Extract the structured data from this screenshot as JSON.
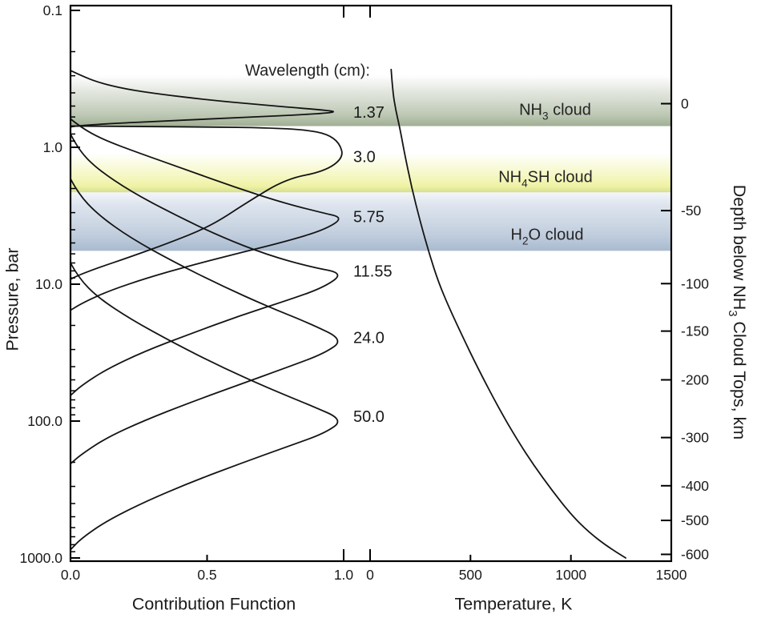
{
  "chart_data": {
    "type": "line",
    "annotation": "Wavelength (cm):",
    "y_axis_left": {
      "label": "Pressure, bar",
      "scale": "log",
      "range_bar": [
        0.1,
        1000
      ],
      "ticks": [
        {
          "p": 0.1,
          "label": "0.1"
        },
        {
          "p": 1,
          "label": "1.0"
        },
        {
          "p": 10,
          "label": "10.0"
        },
        {
          "p": 100,
          "label": "100.0"
        },
        {
          "p": 1000,
          "label": "1000.0"
        }
      ]
    },
    "y_axis_right": {
      "label_pre": "Depth below NH",
      "label_sub": "3",
      "label_post": " Cloud Tops, km",
      "ticks": [
        {
          "km": "0",
          "p": 0.48
        },
        {
          "km": "-50",
          "p": 2.9
        },
        {
          "km": "-100",
          "p": 9.9
        },
        {
          "km": "-150",
          "p": 22
        },
        {
          "km": "-200",
          "p": 50
        },
        {
          "km": "-300",
          "p": 132
        },
        {
          "km": "-400",
          "p": 297
        },
        {
          "km": "-500",
          "p": 532
        },
        {
          "km": "-600",
          "p": 941
        }
      ]
    },
    "x_axes": [
      {
        "id": "contribution",
        "label": "Contribution Function",
        "range": [
          0,
          1
        ],
        "ticks": [
          {
            "v": 0,
            "label": "0.0",
            "major": true,
            "top": false
          },
          {
            "v": 0.5,
            "label": "0.5",
            "major": false,
            "top": false
          },
          {
            "v": 1,
            "label": "1.0",
            "major": true,
            "top": true
          }
        ]
      },
      {
        "id": "temperature",
        "label": "Temperature, K",
        "range": [
          0,
          1500
        ],
        "ticks": [
          {
            "v": 0,
            "label": "0",
            "major": true,
            "top": true
          },
          {
            "v": 500,
            "label": "500",
            "major": false,
            "top": false
          },
          {
            "v": 1000,
            "label": "1000",
            "major": false,
            "top": false
          },
          {
            "v": 1500,
            "label": "1500",
            "major": false,
            "top": false
          }
        ]
      }
    ],
    "cloud_bands": [
      {
        "id": "nh3",
        "label_pre": "NH",
        "label_sub": "3",
        "label_post": " cloud",
        "p_top_bar": 0.36,
        "p_bottom_bar": 0.7,
        "gradient": [
          [
            "0%",
            "rgba(199,207,191,0)"
          ],
          [
            "35%",
            "rgba(199,207,191,0.55)"
          ],
          [
            "80%",
            "rgba(183,195,173,0.95)"
          ],
          [
            "100%",
            "rgba(160,175,147,1)"
          ]
        ]
      },
      {
        "id": "nh4sh",
        "label_pre": "NH",
        "label_sub": "4",
        "label_post": "SH cloud",
        "p_top_bar": 1.33,
        "p_bottom_bar": 2.13,
        "gradient": [
          [
            "0%",
            "rgba(242,245,176,0)"
          ],
          [
            "45%",
            "rgba(242,245,176,0.6)"
          ],
          [
            "85%",
            "rgba(238,241,158,0.95)"
          ],
          [
            "100%",
            "rgba(219,227,124,1)"
          ]
        ]
      },
      {
        "id": "h2o",
        "label_pre": "H",
        "label_sub": "2",
        "label_post": "O cloud",
        "p_top_bar": 2.3,
        "p_bottom_bar": 5.7,
        "gradient": [
          [
            "0%",
            "rgba(198,210,226,0)"
          ],
          [
            "30%",
            "rgba(198,210,226,0.6)"
          ],
          [
            "75%",
            "rgba(190,203,220,0.95)"
          ],
          [
            "100%",
            "rgba(169,186,208,1)"
          ]
        ]
      }
    ],
    "contribution_series": [
      {
        "wavelength_cm": "1.37",
        "peak_pressure_bar": 0.55,
        "label_p": 0.553,
        "points": [
          [
            0,
            0.275
          ],
          [
            0.04,
            0.3
          ],
          [
            0.1,
            0.335
          ],
          [
            0.2,
            0.375
          ],
          [
            0.33,
            0.41
          ],
          [
            0.5,
            0.45
          ],
          [
            0.7,
            0.49
          ],
          [
            0.88,
            0.525
          ],
          [
            1.0,
            0.553
          ],
          [
            0.8,
            0.585
          ],
          [
            0.55,
            0.615
          ],
          [
            0.33,
            0.645
          ],
          [
            0.18,
            0.665
          ],
          [
            0.08,
            0.685
          ],
          [
            0.02,
            0.7
          ],
          [
            0,
            0.71
          ]
        ]
      },
      {
        "wavelength_cm": "3.0",
        "peak_pressure_bar": 1.19,
        "label_p": 1.17,
        "points": [
          [
            0,
            0.7
          ],
          [
            0.25,
            0.705
          ],
          [
            0.5,
            0.71
          ],
          [
            0.72,
            0.72
          ],
          [
            0.86,
            0.745
          ],
          [
            0.94,
            0.8
          ],
          [
            0.985,
            0.93
          ],
          [
            1.0,
            1.19
          ],
          [
            0.93,
            1.5
          ],
          [
            0.79,
            1.7
          ],
          [
            0.65,
            2.5
          ],
          [
            0.51,
            3.8
          ],
          [
            0.36,
            5.0
          ],
          [
            0.22,
            6.3
          ],
          [
            0.1,
            7.6
          ],
          [
            0.03,
            8.6
          ],
          [
            0,
            9.2
          ]
        ]
      },
      {
        "wavelength_cm": "5.75",
        "peak_pressure_bar": 3.27,
        "label_p": 3.2,
        "points": [
          [
            0,
            0.62
          ],
          [
            0.04,
            0.72
          ],
          [
            0.12,
            0.88
          ],
          [
            0.25,
            1.1
          ],
          [
            0.42,
            1.45
          ],
          [
            0.6,
            1.95
          ],
          [
            0.78,
            2.55
          ],
          [
            0.92,
            3.0
          ],
          [
            1.0,
            3.27
          ],
          [
            0.93,
            4.0
          ],
          [
            0.8,
            4.8
          ],
          [
            0.62,
            5.9
          ],
          [
            0.44,
            7.3
          ],
          [
            0.28,
            9.0
          ],
          [
            0.14,
            11.2
          ],
          [
            0.05,
            13.5
          ],
          [
            0,
            15.5
          ]
        ]
      },
      {
        "wavelength_cm": "11.55",
        "peak_pressure_bar": 8.3,
        "label_p": 8.0,
        "points": [
          [
            0,
            0.8
          ],
          [
            0.03,
            1.05
          ],
          [
            0.1,
            1.45
          ],
          [
            0.22,
            2.1
          ],
          [
            0.38,
            3.1
          ],
          [
            0.55,
            4.5
          ],
          [
            0.72,
            6.1
          ],
          [
            0.88,
            7.5
          ],
          [
            1.0,
            8.3
          ],
          [
            0.93,
            10.5
          ],
          [
            0.8,
            13
          ],
          [
            0.62,
            17
          ],
          [
            0.44,
            23
          ],
          [
            0.27,
            31
          ],
          [
            0.13,
            42
          ],
          [
            0.04,
            55
          ],
          [
            0,
            65
          ]
        ]
      },
      {
        "wavelength_cm": "24.0",
        "peak_pressure_bar": 25.5,
        "label_p": 24.5,
        "points": [
          [
            0,
            1.7
          ],
          [
            0.03,
            2.2
          ],
          [
            0.1,
            3.1
          ],
          [
            0.22,
            4.6
          ],
          [
            0.38,
            6.9
          ],
          [
            0.55,
            10.2
          ],
          [
            0.72,
            14.5
          ],
          [
            0.88,
            19.5
          ],
          [
            1.0,
            25.5
          ],
          [
            0.93,
            32
          ],
          [
            0.8,
            40
          ],
          [
            0.62,
            54
          ],
          [
            0.44,
            73
          ],
          [
            0.27,
            99
          ],
          [
            0.13,
            133
          ],
          [
            0.04,
            175
          ],
          [
            0,
            205
          ]
        ]
      },
      {
        "wavelength_cm": "50.0",
        "peak_pressure_bar": 98,
        "label_p": 92,
        "points": [
          [
            0,
            7.0
          ],
          [
            0.03,
            9.0
          ],
          [
            0.1,
            12.5
          ],
          [
            0.22,
            18
          ],
          [
            0.38,
            27
          ],
          [
            0.55,
            40
          ],
          [
            0.72,
            57
          ],
          [
            0.88,
            77
          ],
          [
            1.0,
            98
          ],
          [
            0.93,
            123
          ],
          [
            0.8,
            152
          ],
          [
            0.62,
            205
          ],
          [
            0.44,
            280
          ],
          [
            0.27,
            390
          ],
          [
            0.13,
            540
          ],
          [
            0.04,
            720
          ],
          [
            0,
            870
          ]
        ]
      }
    ],
    "temperature_profile": {
      "units": [
        "K",
        "bar"
      ],
      "points": [
        [
          105,
          0.27
        ],
        [
          112,
          0.38
        ],
        [
          126,
          0.52
        ],
        [
          148,
          0.72
        ],
        [
          170,
          1.08
        ],
        [
          208,
          2.0
        ],
        [
          252,
          3.6
        ],
        [
          295,
          6.0
        ],
        [
          342,
          9.8
        ],
        [
          395,
          15
        ],
        [
          460,
          24
        ],
        [
          540,
          42
        ],
        [
          640,
          80
        ],
        [
          730,
          135
        ],
        [
          815,
          210
        ],
        [
          905,
          320
        ],
        [
          1000,
          480
        ],
        [
          1090,
          650
        ],
        [
          1185,
          830
        ],
        [
          1273,
          1000
        ]
      ]
    }
  }
}
